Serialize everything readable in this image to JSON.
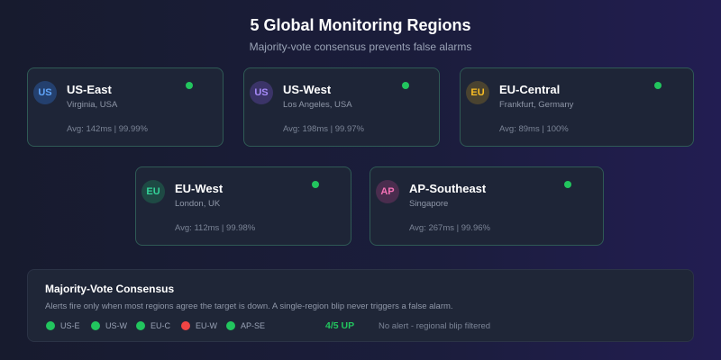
{
  "header": {
    "title": "5 Global Monitoring Regions",
    "subtitle": "Majority-vote consensus prevents false alarms"
  },
  "regions": [
    {
      "code": "US",
      "name": "US-East",
      "location": "Virginia, USA",
      "stats": "Avg: 142ms | 99.99%",
      "status": "up",
      "badge_bg": "#24406e",
      "badge_color": "#60a5fa",
      "status_color": "#22c55e"
    },
    {
      "code": "US",
      "name": "US-West",
      "location": "Los Angeles, USA",
      "stats": "Avg: 198ms | 99.97%",
      "status": "up",
      "badge_bg": "#3b3468",
      "badge_color": "#a78bfa",
      "status_color": "#22c55e"
    },
    {
      "code": "EU",
      "name": "EU-Central",
      "location": "Frankfurt, Germany",
      "stats": "Avg: 89ms | 100%",
      "status": "up",
      "badge_bg": "#4a4330",
      "badge_color": "#fbbf24",
      "status_color": "#22c55e"
    },
    {
      "code": "EU",
      "name": "EU-West",
      "location": "London, UK",
      "stats": "Avg: 112ms | 99.98%",
      "status": "up",
      "badge_bg": "#1e4a44",
      "badge_color": "#34d399",
      "status_color": "#22c55e"
    },
    {
      "code": "AP",
      "name": "AP-Southeast",
      "location": "Singapore",
      "stats": "Avg: 267ms | 99.96%",
      "status": "up",
      "badge_bg": "#4a2d4e",
      "badge_color": "#f472b6",
      "status_color": "#22c55e"
    }
  ],
  "consensus": {
    "title": "Majority-Vote Consensus",
    "description": "Alerts fire only when most regions agree the target is down. A single-region blip never triggers a false alarm.",
    "votes": [
      {
        "label": "US-E",
        "status": "up",
        "color": "#22c55e"
      },
      {
        "label": "US-W",
        "status": "up",
        "color": "#22c55e"
      },
      {
        "label": "EU-C",
        "status": "up",
        "color": "#22c55e"
      },
      {
        "label": "EU-W",
        "status": "down",
        "color": "#ef4444"
      },
      {
        "label": "AP-SE",
        "status": "up",
        "color": "#22c55e"
      }
    ],
    "summary": "4/5 UP",
    "summary_note": "No alert - regional blip filtered"
  }
}
